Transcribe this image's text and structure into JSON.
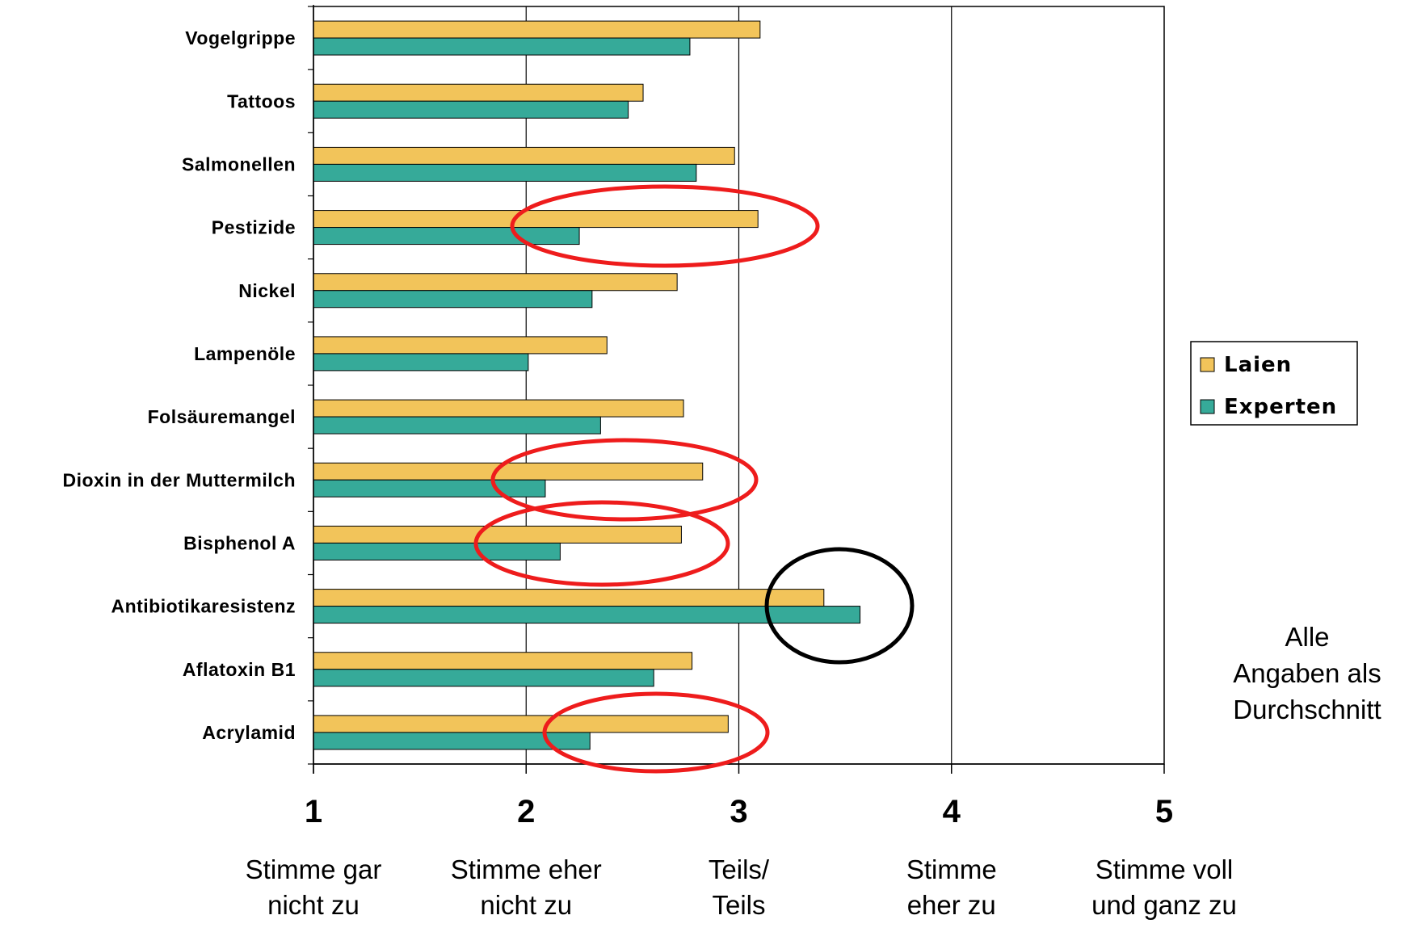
{
  "chart_data": {
    "type": "bar",
    "orientation": "horizontal",
    "categories": [
      "Vogelgrippe",
      "Tattoos",
      "Salmonellen",
      "Pestizide",
      "Nickel",
      "Lampenöle",
      "Folsäuremangel",
      "Dioxin in der Muttermilch",
      "Bisphenol A",
      "Antibiotikaresistenz",
      "Aflatoxin B1",
      "Acrylamid"
    ],
    "series": [
      {
        "name": "Laien",
        "color": "#f2c45a",
        "values": [
          3.1,
          2.55,
          2.98,
          3.09,
          2.71,
          2.38,
          2.74,
          2.83,
          2.73,
          3.4,
          2.78,
          2.95
        ]
      },
      {
        "name": "Experten",
        "color": "#36aa99",
        "values": [
          2.77,
          2.48,
          2.8,
          2.25,
          2.31,
          2.01,
          2.35,
          2.09,
          2.16,
          3.57,
          2.6,
          2.3
        ]
      }
    ],
    "xlim": [
      1,
      5
    ],
    "xticks": [
      "1",
      "2",
      "3",
      "4",
      "5"
    ],
    "xtick_descriptions": [
      [
        "Stimme gar",
        "nicht zu"
      ],
      [
        "Stimme eher",
        "nicht zu"
      ],
      [
        "Teils/",
        "Teils"
      ],
      [
        "Stimme",
        "eher zu"
      ],
      [
        "Stimme voll",
        "und ganz zu"
      ]
    ],
    "grid": "vertical",
    "legend_position": "right",
    "note": [
      "Alle",
      "Angaben als",
      "Durchschnitt"
    ],
    "highlights": [
      {
        "category": "Pestizide",
        "color": "#ee1c1c"
      },
      {
        "category": "Dioxin in der Muttermilch",
        "color": "#ee1c1c"
      },
      {
        "category": "Bisphenol A",
        "color": "#ee1c1c"
      },
      {
        "category": "Acrylamid",
        "color": "#ee1c1c"
      },
      {
        "category": "Antibiotikaresistenz",
        "color": "#000000"
      }
    ]
  }
}
